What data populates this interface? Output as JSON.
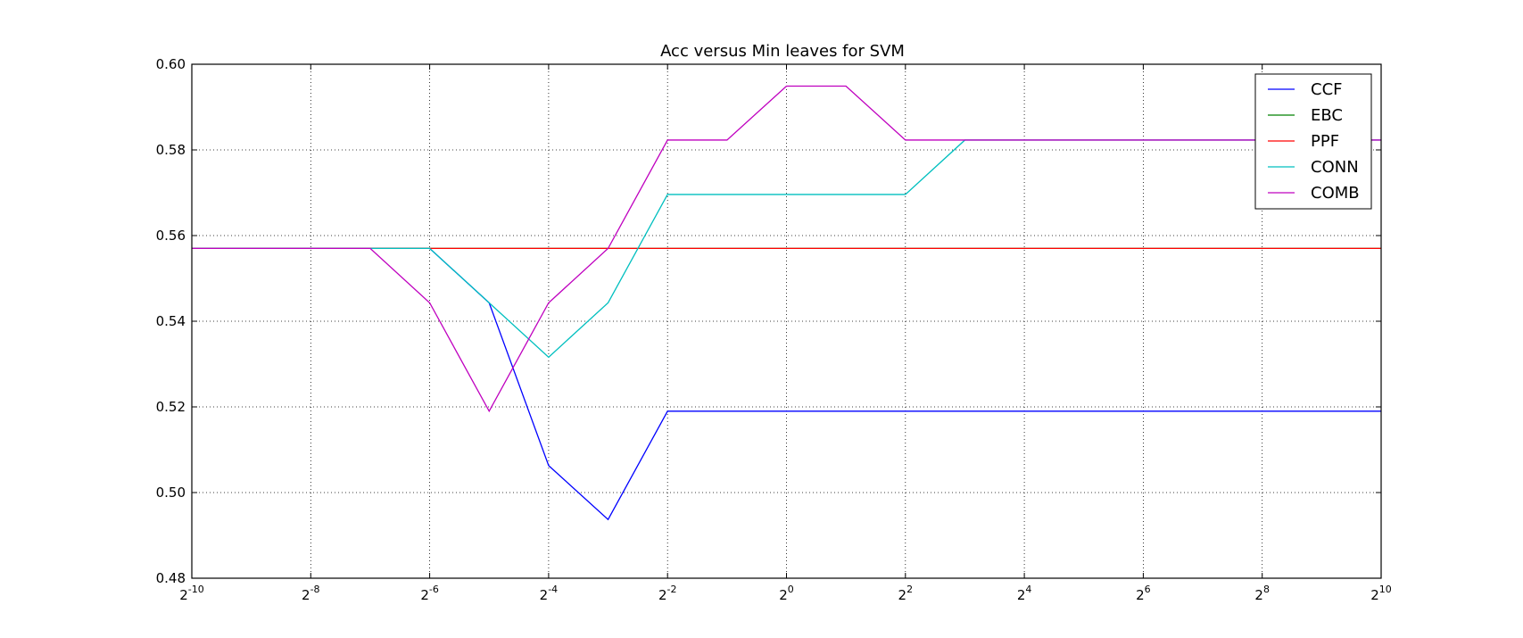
{
  "chart_data": {
    "type": "line",
    "title": "Acc versus Min leaves for SVM",
    "xlabel": "",
    "ylabel": "",
    "x_scale": "log2",
    "x_exponents": [
      -10,
      -9,
      -8,
      -7,
      -6,
      -5,
      -4,
      -3,
      -2,
      -1,
      0,
      1,
      2,
      3,
      4,
      5,
      6,
      7,
      8,
      9,
      10
    ],
    "xlim_exponents": [
      -10,
      10
    ],
    "ylim": [
      0.48,
      0.6
    ],
    "x_ticks": [
      {
        "base": "2",
        "exp": "-10",
        "value": -10
      },
      {
        "base": "2",
        "exp": "-8",
        "value": -8
      },
      {
        "base": "2",
        "exp": "-6",
        "value": -6
      },
      {
        "base": "2",
        "exp": "-4",
        "value": -4
      },
      {
        "base": "2",
        "exp": "-2",
        "value": -2
      },
      {
        "base": "2",
        "exp": "0",
        "value": 0
      },
      {
        "base": "2",
        "exp": "2",
        "value": 2
      },
      {
        "base": "2",
        "exp": "4",
        "value": 4
      },
      {
        "base": "2",
        "exp": "6",
        "value": 6
      },
      {
        "base": "2",
        "exp": "8",
        "value": 8
      },
      {
        "base": "2",
        "exp": "10",
        "value": 10
      }
    ],
    "y_ticks": [
      {
        "label": "0.48",
        "value": 0.48
      },
      {
        "label": "0.50",
        "value": 0.5
      },
      {
        "label": "0.52",
        "value": 0.52
      },
      {
        "label": "0.54",
        "value": 0.54
      },
      {
        "label": "0.56",
        "value": 0.56
      },
      {
        "label": "0.58",
        "value": 0.58
      },
      {
        "label": "0.60",
        "value": 0.6
      }
    ],
    "grid": true,
    "legend_position": "top-right",
    "series": [
      {
        "name": "CCF",
        "color": "#0000ff",
        "values": [
          0.557,
          0.557,
          0.557,
          0.557,
          0.557,
          0.5443,
          0.5063,
          0.4937,
          0.519,
          0.519,
          0.519,
          0.519,
          0.519,
          0.519,
          0.519,
          0.519,
          0.519,
          0.519,
          0.519,
          0.519,
          0.519
        ]
      },
      {
        "name": "EBC",
        "color": "#008000",
        "values": [
          0.557,
          0.557,
          0.557,
          0.557,
          0.557,
          0.557,
          0.557,
          0.557,
          0.557,
          0.557,
          0.557,
          0.557,
          0.557,
          0.557,
          0.557,
          0.557,
          0.557,
          0.557,
          0.557,
          0.557,
          0.557
        ]
      },
      {
        "name": "PPF",
        "color": "#ff0000",
        "values": [
          0.557,
          0.557,
          0.557,
          0.557,
          0.557,
          0.557,
          0.557,
          0.557,
          0.557,
          0.557,
          0.557,
          0.557,
          0.557,
          0.557,
          0.557,
          0.557,
          0.557,
          0.557,
          0.557,
          0.557,
          0.557
        ]
      },
      {
        "name": "CONN",
        "color": "#00bfbf",
        "values": [
          0.557,
          0.557,
          0.557,
          0.557,
          0.557,
          0.5443,
          0.5316,
          0.5443,
          0.5696,
          0.5696,
          0.5696,
          0.5696,
          0.5696,
          0.5823,
          0.5823,
          0.5823,
          0.5823,
          0.5823,
          0.5823,
          0.5823,
          0.5823
        ]
      },
      {
        "name": "COMB",
        "color": "#bf00bf",
        "values": [
          0.557,
          0.557,
          0.557,
          0.557,
          0.5443,
          0.519,
          0.5443,
          0.557,
          0.5823,
          0.5823,
          0.5949,
          0.5949,
          0.5823,
          0.5823,
          0.5823,
          0.5823,
          0.5823,
          0.5823,
          0.5823,
          0.5823,
          0.5823
        ]
      }
    ]
  }
}
